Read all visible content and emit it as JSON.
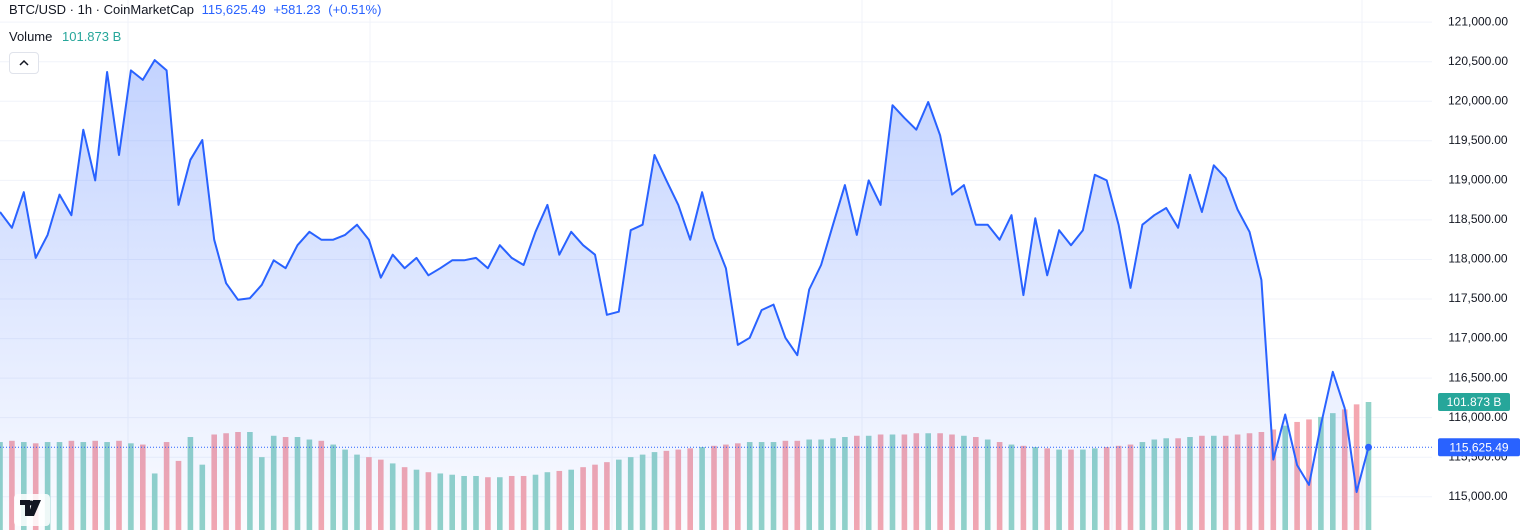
{
  "chart_data": {
    "type": "line",
    "title": "BTC/USD · 1h · CoinMarketCap",
    "current_label": "115,625.49",
    "change": "+581.23",
    "change_pct": "(+0.51%)",
    "color": "#2962ff",
    "categories": [
      null,
      null,
      null,
      null,
      null,
      null,
      null,
      null,
      null,
      null,
      null,
      null,
      null,
      null,
      null,
      null,
      null,
      null,
      null,
      null,
      null,
      null,
      null,
      null,
      null,
      null,
      null,
      null,
      null,
      null,
      null,
      null,
      null,
      null,
      null,
      null,
      null,
      null,
      null,
      null,
      null,
      null,
      null,
      null,
      null,
      null,
      null,
      null,
      null,
      null,
      null,
      null,
      null,
      null,
      null,
      null,
      null,
      null,
      null,
      null,
      null,
      null,
      null,
      null,
      null,
      null,
      null,
      null,
      null,
      null,
      null,
      null,
      null,
      null,
      null,
      null,
      null,
      null,
      null,
      null,
      null,
      null,
      null,
      null,
      null,
      null,
      null,
      null,
      null,
      null,
      null,
      null,
      null,
      null,
      null,
      null,
      null,
      null,
      null,
      null,
      null,
      null,
      null,
      null,
      null,
      null,
      null,
      null,
      null,
      null,
      null,
      null,
      null,
      null,
      null,
      null
    ],
    "values": [
      118600,
      118400,
      118850,
      118020,
      118310,
      118820,
      118560,
      119640,
      119000,
      120370,
      119320,
      120390,
      120270,
      120520,
      120390,
      118690,
      119260,
      119510,
      118250,
      117700,
      117490,
      117510,
      117680,
      117990,
      117890,
      118180,
      118350,
      118250,
      118250,
      118310,
      118440,
      118250,
      117770,
      118060,
      117890,
      118020,
      117800,
      117890,
      117990,
      117990,
      118020,
      117890,
      118180,
      118020,
      117930,
      118350,
      118690,
      118060,
      118350,
      118180,
      118060,
      117300,
      117340,
      118370,
      118440,
      119320,
      119000,
      118690,
      118250,
      118850,
      118270,
      117890,
      116920,
      117010,
      117360,
      117430,
      117010,
      116790,
      117620,
      117930,
      118440,
      118940,
      118310,
      119000,
      118690,
      119950,
      119790,
      119640,
      119990,
      119570,
      118820,
      118940,
      118440,
      118440,
      118250,
      118560,
      117550,
      118520,
      117800,
      118370,
      118180,
      118370,
      119070,
      119000,
      118440,
      117640,
      118440,
      118560,
      118650,
      118400,
      119070,
      118600,
      119190,
      119030,
      118630,
      118350,
      117740,
      115470,
      116040,
      115400,
      115150,
      115910,
      116580,
      116120,
      115060,
      115625.49
    ],
    "volume": {
      "label": "Volume",
      "current_label": "101.873 B",
      "color": "#26a69a",
      "up_color": "#92d3c9",
      "down_color": "#f4a7b0",
      "values": [
        70,
        71,
        70,
        69,
        70,
        70,
        71,
        70,
        71,
        70,
        71,
        69,
        68,
        45,
        70,
        55,
        74,
        52,
        76,
        77,
        78,
        78,
        58,
        75,
        74,
        74,
        72,
        71,
        68,
        64,
        60,
        58,
        56,
        53,
        50,
        48,
        46,
        45,
        44,
        43,
        43,
        42,
        42,
        43,
        43,
        44,
        46,
        47,
        48,
        50,
        52,
        54,
        56,
        58,
        60,
        62,
        63,
        64,
        65,
        66,
        67,
        68,
        69,
        70,
        70,
        70,
        71,
        71,
        72,
        72,
        73,
        74,
        75,
        75,
        76,
        76,
        76,
        77,
        77,
        77,
        76,
        75,
        74,
        72,
        70,
        68,
        67,
        66,
        65,
        64,
        64,
        64,
        65,
        66,
        67,
        68,
        70,
        72,
        73,
        73,
        74,
        75,
        75,
        75,
        76,
        77,
        78,
        80,
        83,
        86,
        88,
        90,
        93,
        96,
        100,
        101.873
      ]
    },
    "ylim": [
      114580,
      121280
    ],
    "yticks": [
      {
        "value": 115000,
        "label": "115,000.00"
      },
      {
        "value": 115500,
        "label": "115,500.00"
      },
      {
        "value": 116000,
        "label": "116,000.00"
      },
      {
        "value": 116500,
        "label": "116,500.00"
      },
      {
        "value": 117000,
        "label": "117,000.00"
      },
      {
        "value": 117500,
        "label": "117,500.00"
      },
      {
        "value": 118000,
        "label": "118,000.00"
      },
      {
        "value": 118500,
        "label": "118,500.00"
      },
      {
        "value": 119000,
        "label": "119,000.00"
      },
      {
        "value": 119500,
        "label": "119,500.00"
      },
      {
        "value": 120000,
        "label": "120,000.00"
      },
      {
        "value": 120500,
        "label": "120,500.00"
      },
      {
        "value": 121000,
        "label": "121,000.00"
      }
    ],
    "grid": true
  }
}
